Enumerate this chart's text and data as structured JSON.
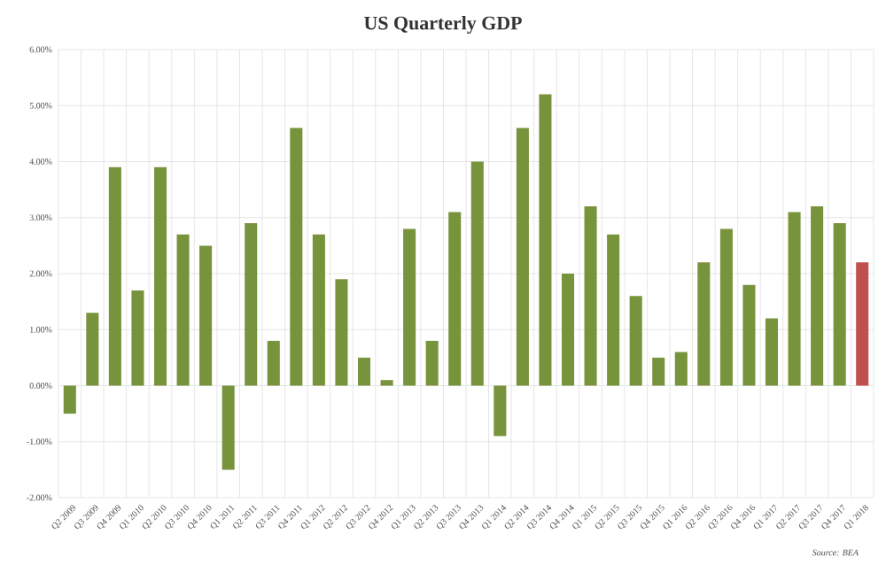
{
  "chart_data": {
    "type": "bar",
    "title": "US Quarterly GDP",
    "categories": [
      "Q2 2009",
      "Q3 2009",
      "Q4 2009",
      "Q1 2010",
      "Q2 2010",
      "Q3 2010",
      "Q4 2010",
      "Q1 2011",
      "Q2 2011",
      "Q3 2011",
      "Q4 2011",
      "Q1 2012",
      "Q2 2012",
      "Q3 2012",
      "Q4 2012",
      "Q1 2013",
      "Q2 2013",
      "Q3 2013",
      "Q4 2013",
      "Q1 2014",
      "Q2 2014",
      "Q3 2014",
      "Q4 2014",
      "Q1 2015",
      "Q2 2015",
      "Q3 2015",
      "Q4 2015",
      "Q1 2016",
      "Q2 2016",
      "Q3 2016",
      "Q4 2016",
      "Q1 2017",
      "Q2 2017",
      "Q3 2017",
      "Q4 2017",
      "Q1 2018"
    ],
    "values": [
      -0.5,
      1.3,
      3.9,
      1.7,
      3.9,
      2.7,
      2.5,
      -1.5,
      2.9,
      0.8,
      4.6,
      2.7,
      1.9,
      0.5,
      0.1,
      2.8,
      0.8,
      3.1,
      4.0,
      -0.9,
      4.6,
      5.2,
      2.0,
      3.2,
      2.7,
      1.6,
      0.5,
      0.6,
      2.2,
      2.8,
      1.8,
      1.2,
      3.1,
      3.2,
      2.9,
      2.2
    ],
    "colors": [
      "#77933c",
      "#77933c",
      "#77933c",
      "#77933c",
      "#77933c",
      "#77933c",
      "#77933c",
      "#77933c",
      "#77933c",
      "#77933c",
      "#77933c",
      "#77933c",
      "#77933c",
      "#77933c",
      "#77933c",
      "#77933c",
      "#77933c",
      "#77933c",
      "#77933c",
      "#77933c",
      "#77933c",
      "#77933c",
      "#77933c",
      "#77933c",
      "#77933c",
      "#77933c",
      "#77933c",
      "#77933c",
      "#77933c",
      "#77933c",
      "#77933c",
      "#77933c",
      "#77933c",
      "#77933c",
      "#77933c",
      "#c0504d"
    ],
    "ylim": [
      -2,
      6
    ],
    "yticks": [
      {
        "value": -2,
        "label": "-2.00%"
      },
      {
        "value": -1,
        "label": "-1.00%"
      },
      {
        "value": 0,
        "label": "0.00%"
      },
      {
        "value": 1,
        "label": "1.00%"
      },
      {
        "value": 2,
        "label": "2.00%"
      },
      {
        "value": 3,
        "label": "3.00%"
      },
      {
        "value": 4,
        "label": "4.00%"
      },
      {
        "value": 5,
        "label": "5.00%"
      },
      {
        "value": 6,
        "label": "6.00%"
      }
    ],
    "grid": true,
    "annotations": [
      "Source: BEA"
    ]
  }
}
